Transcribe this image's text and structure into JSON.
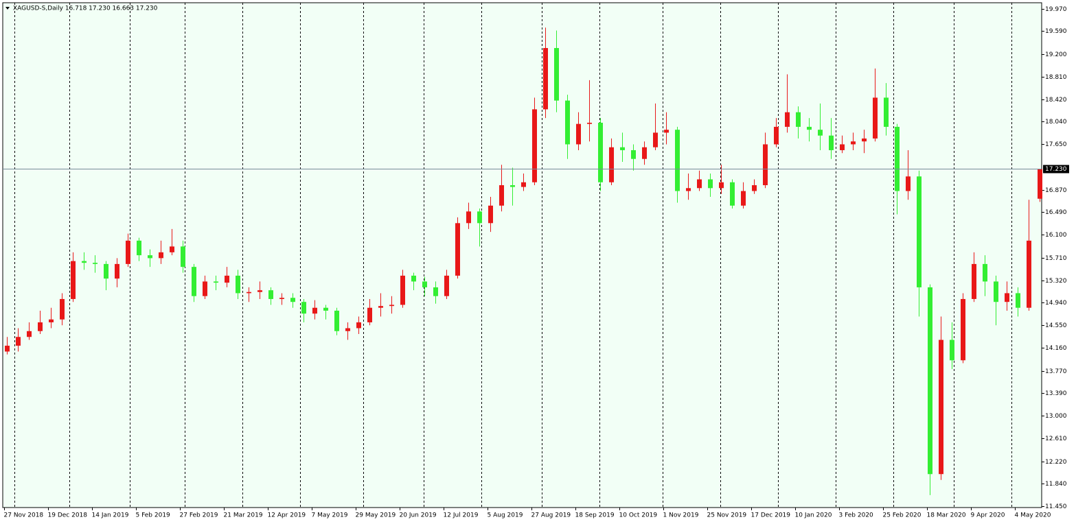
{
  "chart_data": {
    "type": "candlestick",
    "header": "XAGUSD-S,Daily  16.718 17.230 16.663 17.230",
    "x": [
      1,
      5,
      9,
      13,
      17,
      21,
      25,
      29,
      33,
      37,
      41,
      45,
      49,
      53,
      57,
      61,
      65,
      69,
      73,
      77,
      81,
      85,
      89,
      93,
      97,
      101,
      105,
      109,
      113,
      117,
      121,
      125,
      129,
      133,
      137,
      141,
      145,
      149,
      153,
      157,
      161,
      165,
      169,
      173,
      177,
      181,
      185,
      189,
      193,
      197,
      201,
      205,
      209,
      213,
      217,
      221,
      225,
      229,
      233,
      237,
      241,
      245,
      249,
      253,
      257,
      261,
      265,
      269,
      273,
      277,
      281,
      285,
      289,
      293,
      297,
      301,
      305,
      309,
      313,
      317,
      321,
      325,
      329,
      333,
      337,
      341,
      345,
      349,
      353,
      357,
      361,
      365,
      369,
      373,
      377
    ],
    "open": [
      14.1,
      14.2,
      14.35,
      14.45,
      14.6,
      14.65,
      15.0,
      15.65,
      15.62,
      15.6,
      15.35,
      15.6,
      16.0,
      15.75,
      15.7,
      15.8,
      15.9,
      15.55,
      15.05,
      15.3,
      15.28,
      15.4,
      15.1,
      15.12,
      15.15,
      15.0,
      15.02,
      14.95,
      14.75,
      14.85,
      14.8,
      14.45,
      14.5,
      14.6,
      14.85,
      14.88,
      14.9,
      15.4,
      15.3,
      15.2,
      15.05,
      15.4,
      16.3,
      16.5,
      16.3,
      16.6,
      16.95,
      16.92,
      17.0,
      18.25,
      19.3,
      18.4,
      17.65,
      18.0,
      18.02,
      17.0,
      17.6,
      17.55,
      17.4,
      17.6,
      17.85,
      17.9,
      16.85,
      16.9,
      17.05,
      16.9,
      17.0,
      16.6,
      16.85,
      16.95,
      17.65,
      17.95,
      18.2,
      17.95,
      17.9,
      17.8,
      17.55,
      17.65,
      17.7,
      17.75,
      18.45,
      17.95,
      16.85,
      17.1,
      15.2,
      12.0,
      14.3,
      13.95,
      15.0,
      15.6,
      15.3,
      14.95,
      15.1,
      14.85,
      16.718
    ],
    "high": [
      14.35,
      14.5,
      14.6,
      14.8,
      14.85,
      15.1,
      15.8,
      15.8,
      15.75,
      15.65,
      15.7,
      16.12,
      16.05,
      15.85,
      16.0,
      16.2,
      16.0,
      15.6,
      15.4,
      15.4,
      15.55,
      15.5,
      15.2,
      15.3,
      15.2,
      15.1,
      15.1,
      15.0,
      14.98,
      14.9,
      14.85,
      14.6,
      14.7,
      15.0,
      15.1,
      15.05,
      15.5,
      15.45,
      15.38,
      15.3,
      15.5,
      16.4,
      16.65,
      16.55,
      16.75,
      17.3,
      17.25,
      17.15,
      18.45,
      19.65,
      19.6,
      18.5,
      18.2,
      18.75,
      18.1,
      17.75,
      17.85,
      17.65,
      17.7,
      18.35,
      18.2,
      17.95,
      17.15,
      17.2,
      17.15,
      17.3,
      17.05,
      17.0,
      17.05,
      17.85,
      18.1,
      18.85,
      18.3,
      18.1,
      18.35,
      18.1,
      17.8,
      17.85,
      17.9,
      18.95,
      18.7,
      18.0,
      17.55,
      17.2,
      15.25,
      14.7,
      14.6,
      15.1,
      15.8,
      15.75,
      15.4,
      15.3,
      15.2,
      16.7,
      17.23
    ],
    "low": [
      14.05,
      14.1,
      14.3,
      14.4,
      14.5,
      14.55,
      14.95,
      15.5,
      15.45,
      15.15,
      15.2,
      15.55,
      15.65,
      15.55,
      15.6,
      15.75,
      15.45,
      14.95,
      15.0,
      15.15,
      15.2,
      15.0,
      14.95,
      15.0,
      14.9,
      14.9,
      14.85,
      14.6,
      14.65,
      14.65,
      14.38,
      14.3,
      14.4,
      14.55,
      14.7,
      14.75,
      14.85,
      15.15,
      15.05,
      14.92,
      15.0,
      15.35,
      16.2,
      15.9,
      16.15,
      16.5,
      16.6,
      16.85,
      16.95,
      18.1,
      18.2,
      17.4,
      17.55,
      17.7,
      16.85,
      16.95,
      17.35,
      17.2,
      17.3,
      17.55,
      17.65,
      16.65,
      16.7,
      16.85,
      16.75,
      16.8,
      16.55,
      16.55,
      16.8,
      16.9,
      17.6,
      17.85,
      17.75,
      17.7,
      17.55,
      17.4,
      17.5,
      17.55,
      17.5,
      17.7,
      17.8,
      16.45,
      16.7,
      14.7,
      11.64,
      11.9,
      13.8,
      13.9,
      14.95,
      15.05,
      14.55,
      14.8,
      14.7,
      14.8,
      16.663
    ],
    "close": [
      14.2,
      14.35,
      14.45,
      14.6,
      14.65,
      15.0,
      15.65,
      15.62,
      15.6,
      15.35,
      15.6,
      16.0,
      15.75,
      15.7,
      15.8,
      15.9,
      15.55,
      15.05,
      15.3,
      15.28,
      15.4,
      15.1,
      15.12,
      15.15,
      15.0,
      15.02,
      14.95,
      14.75,
      14.85,
      14.8,
      14.45,
      14.5,
      14.6,
      14.85,
      14.88,
      14.9,
      15.4,
      15.3,
      15.2,
      15.05,
      15.4,
      16.3,
      16.5,
      16.3,
      16.6,
      16.95,
      16.92,
      17.0,
      18.25,
      19.3,
      18.4,
      17.65,
      18.0,
      18.02,
      17.0,
      17.6,
      17.55,
      17.4,
      17.6,
      17.85,
      17.9,
      16.85,
      16.9,
      17.05,
      16.9,
      17.0,
      16.6,
      16.85,
      16.95,
      17.65,
      17.95,
      18.2,
      17.95,
      17.9,
      17.8,
      17.55,
      17.65,
      17.7,
      17.75,
      18.45,
      17.95,
      16.85,
      17.1,
      15.2,
      12.0,
      14.3,
      13.95,
      15.0,
      15.6,
      15.3,
      14.95,
      15.1,
      14.85,
      16.0,
      17.23
    ],
    "up_color": "#e81818",
    "down_color": "#33ee33",
    "background": "#f2fff6",
    "xlim": [
      -0.5,
      377.75
    ],
    "ylim": [
      11.427,
      20.076
    ],
    "xticks": [
      {
        "value": 0,
        "label": "27 Nov 2018"
      },
      {
        "value": 16,
        "label": "19 Dec 2018"
      },
      {
        "value": 32,
        "label": "14 Jan 2019"
      },
      {
        "value": 48,
        "label": "5 Feb 2019"
      },
      {
        "value": 64,
        "label": "27 Feb 2019"
      },
      {
        "value": 80,
        "label": "21 Mar 2019"
      },
      {
        "value": 96,
        "label": "12 Apr 2019"
      },
      {
        "value": 112,
        "label": "7 May 2019"
      },
      {
        "value": 128,
        "label": "29 May 2019"
      },
      {
        "value": 144,
        "label": "20 Jun 2019"
      },
      {
        "value": 160,
        "label": "12 Jul 2019"
      },
      {
        "value": 176,
        "label": "5 Aug 2019"
      },
      {
        "value": 192,
        "label": "27 Aug 2019"
      },
      {
        "value": 208,
        "label": "18 Sep 2019"
      },
      {
        "value": 224,
        "label": "10 Oct 2019"
      },
      {
        "value": 240,
        "label": "1 Nov 2019"
      },
      {
        "value": 256,
        "label": "25 Nov 2019"
      },
      {
        "value": 272,
        "label": "17 Dec 2019"
      },
      {
        "value": 288,
        "label": "10 Jan 2020"
      },
      {
        "value": 304,
        "label": "3 Feb 2020"
      },
      {
        "value": 320,
        "label": "25 Feb 2020"
      },
      {
        "value": 336,
        "label": "18 Mar 2020"
      },
      {
        "value": 352,
        "label": "9 Apr 2020"
      },
      {
        "value": 368,
        "label": "4 May 2020"
      }
    ],
    "yticks": [
      {
        "value": 19.97,
        "label": "19.970"
      },
      {
        "value": 19.59,
        "label": "19.590"
      },
      {
        "value": 19.2,
        "label": "19.200"
      },
      {
        "value": 18.81,
        "label": "18.810"
      },
      {
        "value": 18.42,
        "label": "18.420"
      },
      {
        "value": 18.04,
        "label": "18.040"
      },
      {
        "value": 17.65,
        "label": "17.650"
      },
      {
        "value": 16.87,
        "label": "16.870"
      },
      {
        "value": 16.49,
        "label": "16.490"
      },
      {
        "value": 16.1,
        "label": "16.100"
      },
      {
        "value": 15.71,
        "label": "15.710"
      },
      {
        "value": 15.32,
        "label": "15.320"
      },
      {
        "value": 14.94,
        "label": "14.940"
      },
      {
        "value": 14.55,
        "label": "14.550"
      },
      {
        "value": 14.16,
        "label": "14.160"
      },
      {
        "value": 13.77,
        "label": "13.770"
      },
      {
        "value": 13.39,
        "label": "13.390"
      },
      {
        "value": 13.0,
        "label": "13.000"
      },
      {
        "value": 12.61,
        "label": "12.610"
      },
      {
        "value": 12.22,
        "label": "12.220"
      },
      {
        "value": 11.84,
        "label": "11.840"
      },
      {
        "value": 11.45,
        "label": "11.450"
      }
    ],
    "period_separators": [
      3.75,
      23.75,
      45.75,
      65.75,
      86.75,
      107.75,
      130.75,
      152.75,
      173.75,
      195.75,
      216.75,
      239.75,
      260.75,
      281.75,
      302.75,
      323.75,
      345.75,
      366.75
    ],
    "last_price": {
      "value": 17.23,
      "label": "17.230"
    }
  }
}
